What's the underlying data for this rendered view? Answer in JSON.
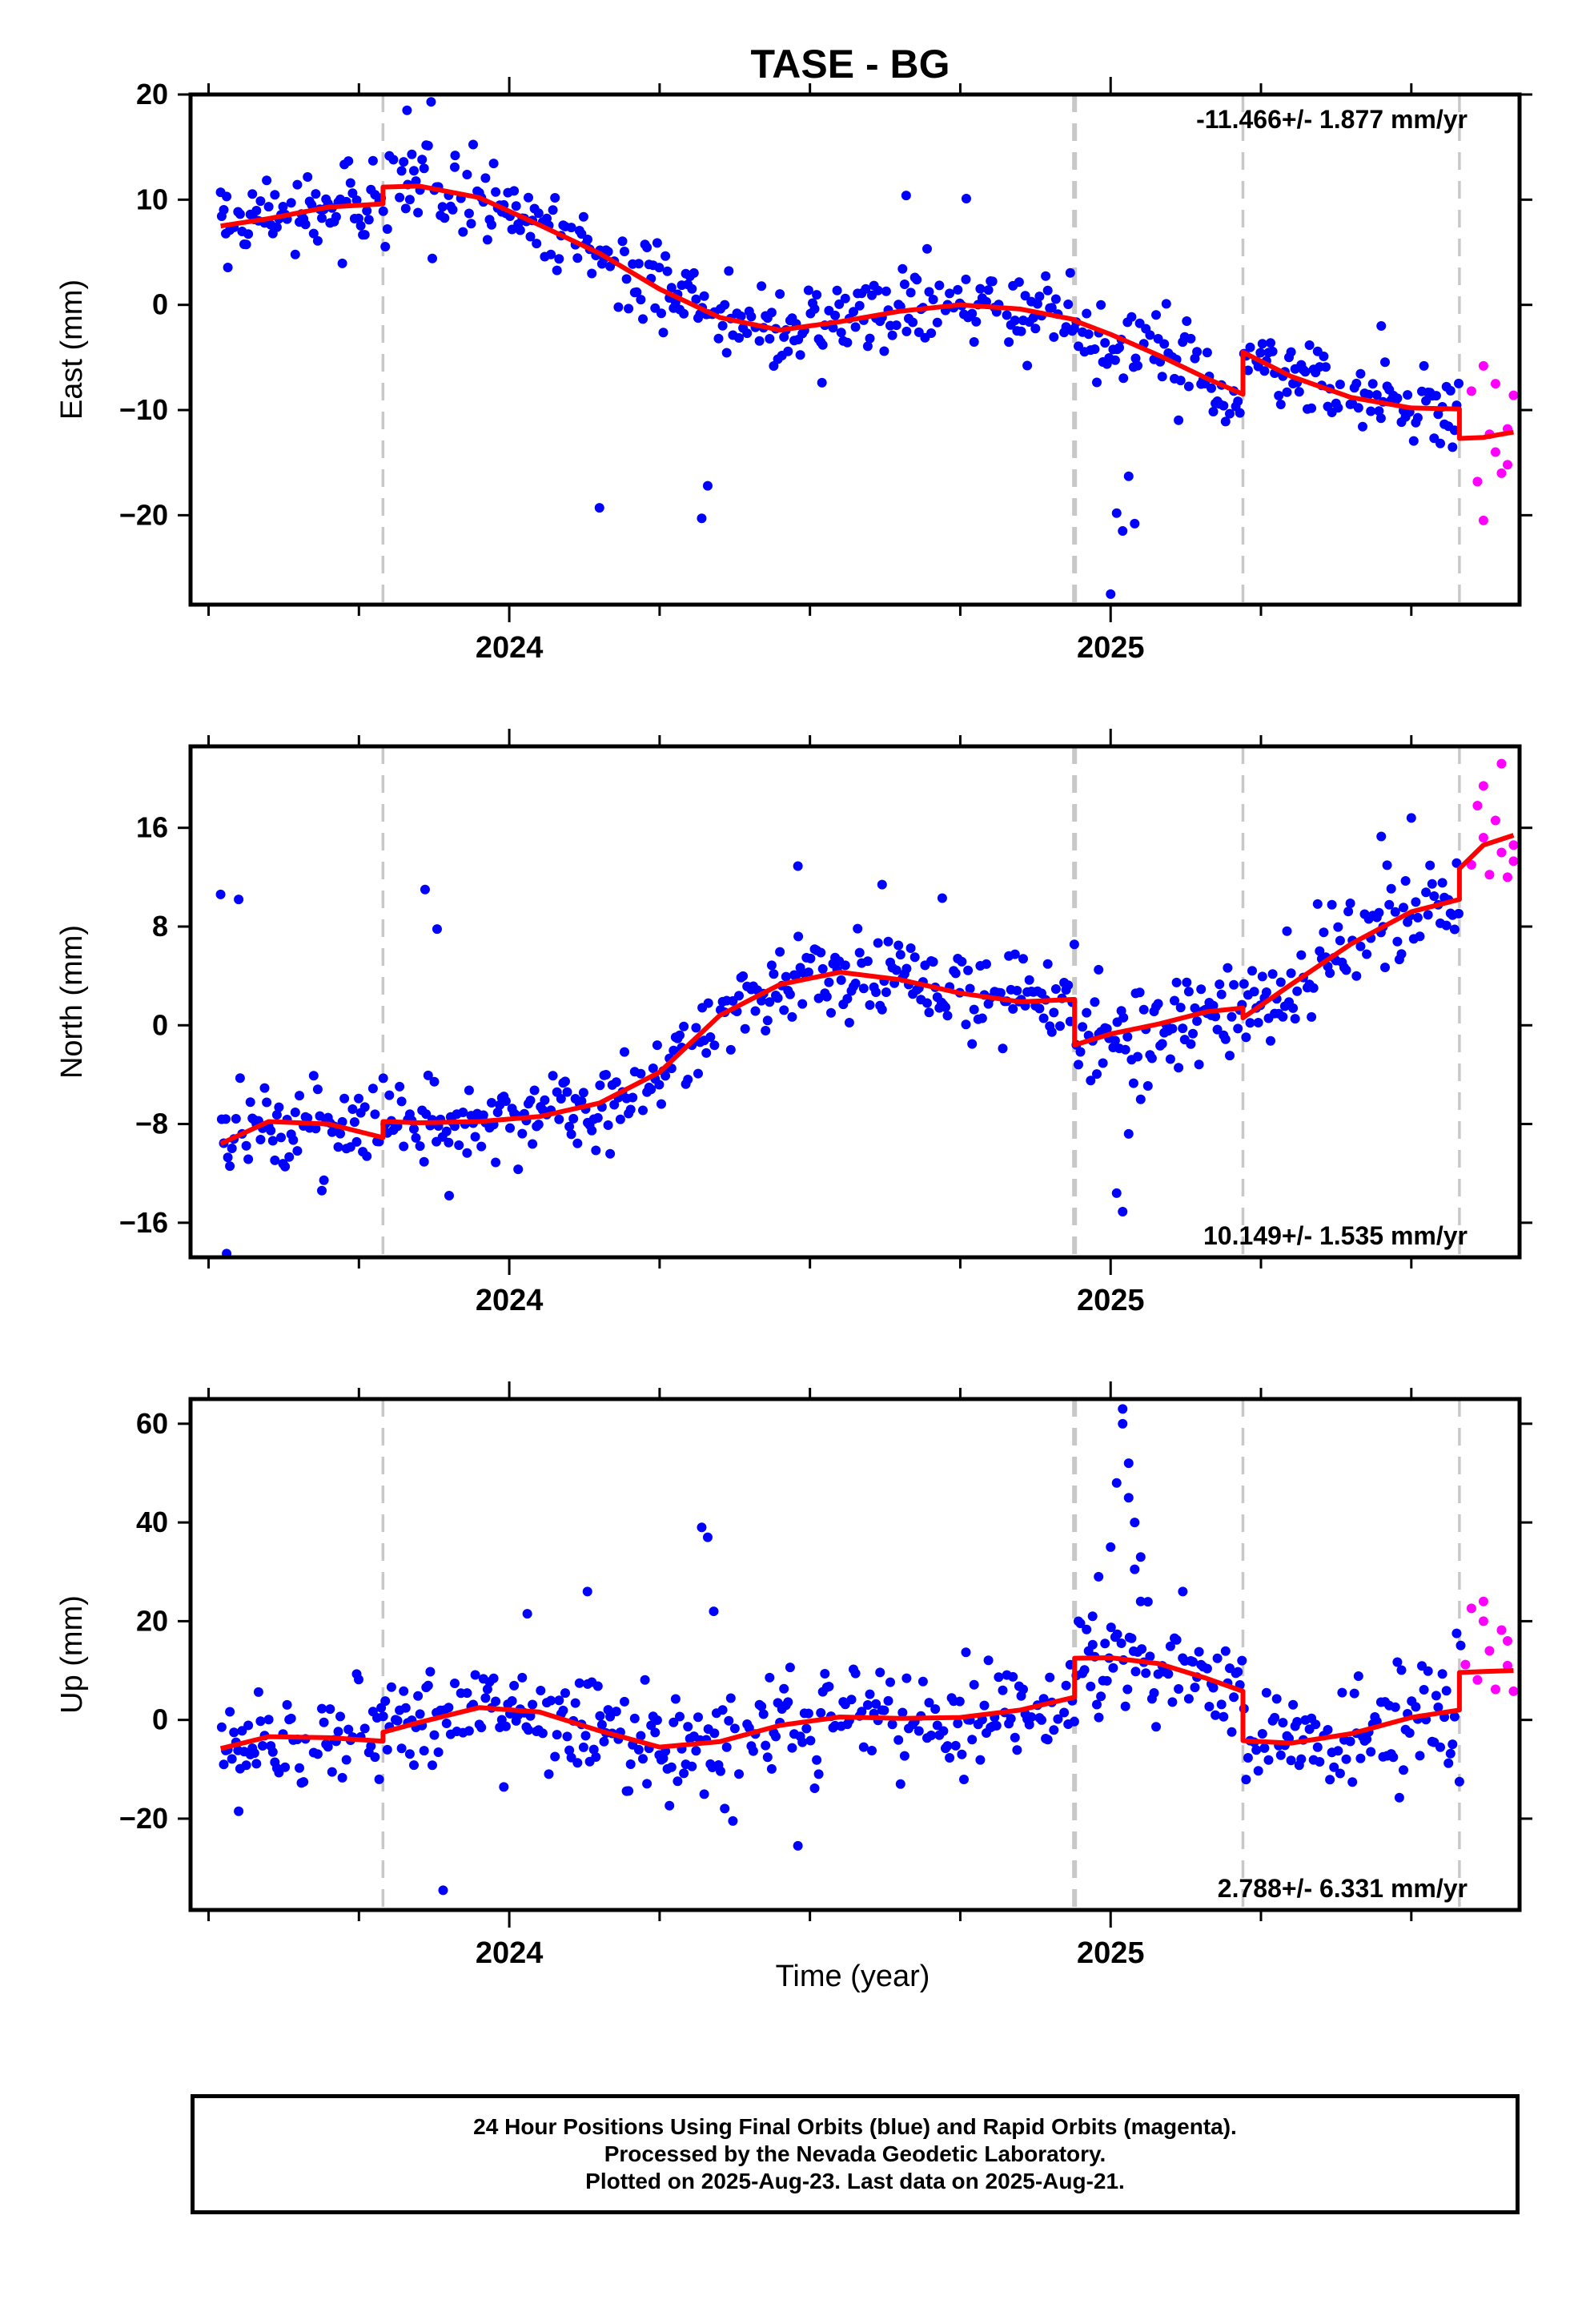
{
  "chart_data": {
    "type": "scatter",
    "title": "TASE - BG",
    "xlabel": "Time (year)",
    "x_ticks": [
      "2024",
      "2025"
    ],
    "xlim": [
      2023.47,
      2025.68
    ],
    "grid": false,
    "event_lines": [
      {
        "x": 2023.79,
        "style": "dashed"
      },
      {
        "x": 2024.94,
        "style": "dashed-thick"
      },
      {
        "x": 2025.22,
        "style": "dashed"
      },
      {
        "x": 2025.58,
        "style": "dashed"
      }
    ],
    "colors": {
      "final_orbits": "#0000ff",
      "rapid_orbits": "#ff00ff",
      "model": "#ff0000",
      "event_line": "#c8c8c8"
    },
    "panels": [
      {
        "name": "east",
        "ylabel": "East (mm)",
        "ylim": [
          -28.5,
          20
        ],
        "y_ticks": [
          20,
          10,
          0,
          -10,
          -20
        ],
        "rate_label": "-11.466+/- 1.877 mm/yr",
        "rate_position": "top-right",
        "model_series": [
          {
            "x": [
              2023.52,
              2023.6,
              2023.7,
              2023.79
            ],
            "y": [
              7.5,
              8.2,
              9.3,
              9.6
            ]
          },
          {
            "x": [
              2023.79,
              2023.85,
              2023.95,
              2024.05,
              2024.15,
              2024.25,
              2024.35,
              2024.45,
              2024.55,
              2024.65,
              2024.75,
              2024.85,
              2024.94
            ],
            "y": [
              11.2,
              11.3,
              10.2,
              7.6,
              4.9,
              1.5,
              -1.2,
              -2.4,
              -1.6,
              -0.6,
              0.0,
              -0.4,
              -1.4
            ]
          },
          {
            "x": [
              2024.94,
              2025.0,
              2025.08,
              2025.16,
              2025.22
            ],
            "y": [
              -1.5,
              -2.8,
              -4.8,
              -7.0,
              -8.5
            ]
          },
          {
            "x": [
              2025.22,
              2025.3,
              2025.4,
              2025.5,
              2025.58
            ],
            "y": [
              -4.5,
              -6.8,
              -8.8,
              -9.8,
              -9.9
            ]
          },
          {
            "x": [
              2025.58,
              2025.62,
              2025.67
            ],
            "y": [
              -12.7,
              -12.6,
              -12.1
            ]
          }
        ],
        "outliers": [
          {
            "x": [
              2023.52,
              2023.53,
              2023.83,
              2023.87,
              2023.91,
              2024.15,
              2024.32,
              2024.33,
              2024.52,
              2024.66,
              2024.76,
              2025.0,
              2025.01,
              2025.02,
              2025.03,
              2025.04,
              2025.45
            ],
            "y": [
              10.7,
              10.3,
              18.5,
              19.3,
              14.2,
              -19.3,
              -20.3,
              -17.2,
              -7.4,
              10.4,
              10.1,
              -27.5,
              -19.8,
              -21.5,
              -16.3,
              -20.8,
              -2.0
            ]
          }
        ],
        "rapid_points": {
          "x": [
            2025.6,
            2025.61,
            2025.62,
            2025.62,
            2025.63,
            2025.64,
            2025.64,
            2025.65,
            2025.66,
            2025.66,
            2025.67
          ],
          "y": [
            -8.2,
            -16.8,
            -5.8,
            -20.5,
            -12.3,
            -14.0,
            -7.5,
            -16.0,
            -11.8,
            -15.2,
            -8.6
          ]
        }
      },
      {
        "name": "north",
        "ylabel": "North (mm)",
        "ylim": [
          -18.8,
          22.6
        ],
        "y_ticks": [
          16,
          8,
          0,
          -8,
          -16
        ],
        "rate_label": "10.149+/- 1.535 mm/yr",
        "rate_position": "bottom-right",
        "model_series": [
          {
            "x": [
              2023.52,
              2023.6,
              2023.7,
              2023.79
            ],
            "y": [
              -9.6,
              -7.8,
              -8.0,
              -9.1
            ]
          },
          {
            "x": [
              2023.79,
              2023.85,
              2023.95,
              2024.05,
              2024.15,
              2024.25,
              2024.35,
              2024.45,
              2024.55,
              2024.65,
              2024.75,
              2024.85,
              2024.94
            ],
            "y": [
              -7.8,
              -7.9,
              -7.8,
              -7.4,
              -6.3,
              -3.8,
              0.8,
              3.3,
              4.3,
              3.7,
              2.6,
              1.9,
              2.1
            ]
          },
          {
            "x": [
              2024.94,
              2025.0,
              2025.08,
              2025.16,
              2025.22
            ],
            "y": [
              -1.6,
              -0.7,
              0.1,
              1.1,
              1.4
            ]
          },
          {
            "x": [
              2025.22,
              2025.3,
              2025.4,
              2025.5,
              2025.58
            ],
            "y": [
              0.6,
              3.3,
              6.6,
              9.2,
              10.2
            ]
          },
          {
            "x": [
              2025.58,
              2025.62,
              2025.67
            ],
            "y": [
              12.7,
              14.6,
              15.4
            ]
          }
        ],
        "outliers": [
          {
            "x": [
              2023.52,
              2023.53,
              2023.55,
              2023.86,
              2023.88,
              2023.9,
              2024.48,
              2024.62,
              2024.72,
              2024.98,
              2025.01,
              2025.02,
              2025.03,
              2025.05,
              2025.5,
              2025.45
            ],
            "y": [
              10.6,
              -18.5,
              10.2,
              11.0,
              7.8,
              -13.8,
              12.9,
              11.4,
              10.3,
              4.5,
              -13.6,
              -15.1,
              -8.8,
              -6.0,
              16.8,
              15.3
            ]
          }
        ],
        "rapid_points": {
          "x": [
            2025.6,
            2025.61,
            2025.62,
            2025.62,
            2025.63,
            2025.64,
            2025.65,
            2025.65,
            2025.66,
            2025.67,
            2025.67
          ],
          "y": [
            13.0,
            17.8,
            19.4,
            15.2,
            12.2,
            16.6,
            14.0,
            21.2,
            12.0,
            13.3,
            14.6
          ]
        }
      },
      {
        "name": "up",
        "ylabel": "Up (mm)",
        "ylim": [
          -38.5,
          65
        ],
        "y_ticks": [
          60,
          40,
          20,
          0,
          -20
        ],
        "rate_label": "2.788+/- 6.331 mm/yr",
        "rate_position": "bottom-right",
        "model_series": [
          {
            "x": [
              2023.52,
              2023.6,
              2023.7,
              2023.79
            ],
            "y": [
              -5.8,
              -3.4,
              -3.6,
              -4.3
            ]
          },
          {
            "x": [
              2023.79,
              2023.85,
              2023.95,
              2024.05,
              2024.15,
              2024.25,
              2024.35,
              2024.45,
              2024.55,
              2024.65,
              2024.75,
              2024.85,
              2024.94
            ],
            "y": [
              -2.5,
              -0.5,
              2.5,
              1.6,
              -2.2,
              -5.5,
              -4.4,
              -1.1,
              0.6,
              0.3,
              0.5,
              2.0,
              4.6
            ]
          },
          {
            "x": [
              2024.94,
              2025.0,
              2025.08,
              2025.16,
              2025.22
            ],
            "y": [
              12.5,
              12.6,
              11.4,
              8.4,
              5.8
            ]
          },
          {
            "x": [
              2025.22,
              2025.3,
              2025.4,
              2025.5,
              2025.58
            ],
            "y": [
              -4.2,
              -4.7,
              -2.8,
              0.5,
              2.0
            ]
          },
          {
            "x": [
              2025.58,
              2025.62,
              2025.67
            ],
            "y": [
              9.6,
              9.8,
              10.0
            ]
          }
        ],
        "outliers": [
          {
            "x": [
              2023.55,
              2023.89,
              2024.03,
              2024.13,
              2024.32,
              2024.33,
              2024.34,
              2024.48,
              2024.97,
              2024.98,
              2025.0,
              2025.01,
              2025.02,
              2025.02,
              2025.03,
              2025.03,
              2025.04,
              2025.04,
              2025.05,
              2025.05,
              2025.12,
              2025.58
            ],
            "y": [
              -18.5,
              -34.5,
              21.5,
              26.0,
              39.0,
              37.0,
              22.0,
              -25.5,
              21.0,
              29.0,
              35.0,
              48.0,
              63.0,
              60.0,
              52.0,
              45.0,
              40.0,
              30.5,
              24.0,
              33.0,
              26.0,
              -12.5
            ]
          }
        ],
        "rapid_points": {
          "x": [
            2025.59,
            2025.6,
            2025.61,
            2025.62,
            2025.62,
            2025.63,
            2025.64,
            2025.65,
            2025.66,
            2025.66,
            2025.67
          ],
          "y": [
            11.2,
            22.6,
            8.1,
            20.0,
            24.0,
            14.0,
            6.2,
            18.2,
            11.0,
            16.0,
            5.8
          ]
        }
      }
    ]
  },
  "footer": {
    "line1": "24 Hour Positions Using Final Orbits (blue) and Rapid Orbits (magenta).",
    "line2": "Processed by the Nevada Geodetic Laboratory.",
    "line3": "Plotted on 2025-Aug-23. Last data on 2025-Aug-21."
  }
}
